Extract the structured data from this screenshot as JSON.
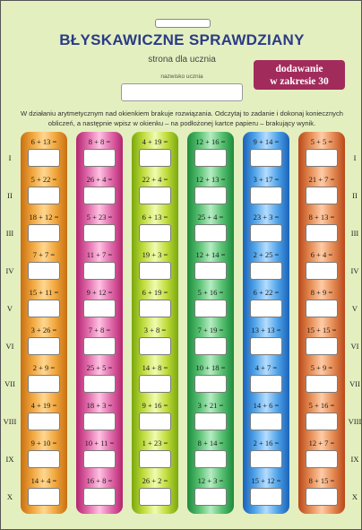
{
  "header": {
    "title": "BŁYSKAWICZNE SPRAWDZIANY",
    "subtitle": "strona dla ucznia",
    "name_label": "nazwisko ucznia",
    "badge_line1": "dodawanie",
    "badge_line2": "w zakresie 30"
  },
  "instruction": {
    "line1": "W działaniu arytmetycznym nad okienkiem brakuje rozwiązania. Odczytaj to zadanie i dokonaj koniecznych",
    "line2": "obliczeń, a następnie wpisz w okienku – na podłożonej kartce papieru – brakujący wynik."
  },
  "rows": [
    "I",
    "II",
    "III",
    "IV",
    "V",
    "VI",
    "VII",
    "VIII",
    "IX",
    "X"
  ],
  "columns": [
    {
      "color": "#f0a53c",
      "tasks": [
        "6 + 13 =",
        "5 + 22 =",
        "18 + 12 =",
        "7 + 7 =",
        "15 + 11 =",
        "3 + 26 =",
        "2 + 9 =",
        "4 + 19 =",
        "9 + 10 =",
        "14 + 4 ="
      ]
    },
    {
      "color": "#e06aaa",
      "tasks": [
        "8 + 8 =",
        "26 + 4 =",
        "5 + 23 =",
        "11 + 7 =",
        "9 + 12 =",
        "7 + 8 =",
        "25 + 5 =",
        "18 + 3 =",
        "10 + 11 =",
        "16 + 8 ="
      ]
    },
    {
      "color": "#bfdc3c",
      "tasks": [
        "4 + 19 =",
        "22 + 4 =",
        "6 + 13 =",
        "19 + 3 =",
        "6 + 19 =",
        "3 + 8 =",
        "14 + 8 =",
        "9 + 16 =",
        "1 + 23 =",
        "26 + 2 ="
      ]
    },
    {
      "color": "#56c070",
      "tasks": [
        "12 + 16 =",
        "12 + 13 =",
        "25 + 4 =",
        "12 + 14 =",
        "5 + 16 =",
        "7 + 19 =",
        "10 + 18 =",
        "3 + 21 =",
        "8 + 14 =",
        "12 + 3 ="
      ]
    },
    {
      "color": "#4ea2e8",
      "tasks": [
        "9 + 14 =",
        "3 + 17 =",
        "23 + 3 =",
        "2 + 25 =",
        "6 + 22 =",
        "13 + 13 =",
        "4 + 7 =",
        "14 + 6 =",
        "2 + 16 =",
        "15 + 12 ="
      ]
    },
    {
      "color": "#e48a52",
      "tasks": [
        "5 + 5 =",
        "21 + 7 =",
        "8 + 13 =",
        "6 + 4 =",
        "8 + 9 =",
        "15 + 15 =",
        "5 + 9 =",
        "5 + 16 =",
        "12 + 7 =",
        "8 + 15 ="
      ]
    }
  ]
}
